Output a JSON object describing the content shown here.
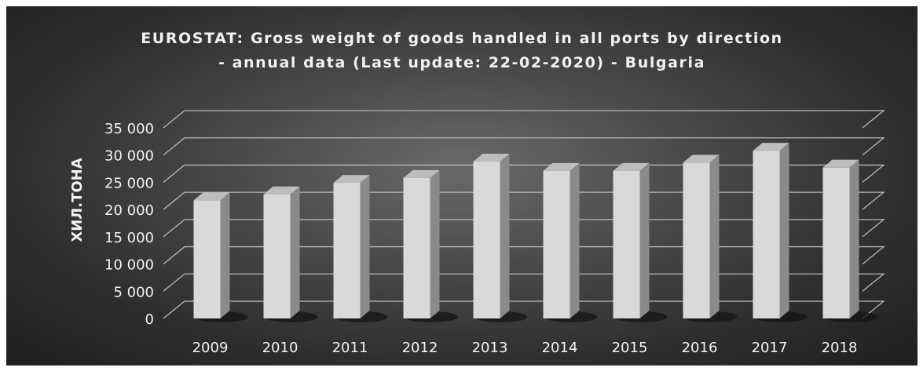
{
  "chart_data": {
    "type": "bar",
    "title_lines": [
      "EUROSTAT: Gross weight of goods handled in all ports by direction",
      "- annual data (Last update: 22-02-2020) - Bulgaria"
    ],
    "ylabel": "ХИЛ.ТОНА",
    "xlabel": "",
    "categories": [
      "2009",
      "2010",
      "2011",
      "2012",
      "2013",
      "2014",
      "2015",
      "2016",
      "2017",
      "2018"
    ],
    "series": [
      {
        "values": [
          21700,
          22800,
          24900,
          25800,
          28800,
          27100,
          27100,
          28600,
          30800,
          27700
        ]
      }
    ],
    "ylim": [
      0,
      35000
    ],
    "y_ticks": [
      {
        "value": 0,
        "label": "0"
      },
      {
        "value": 5000,
        "label": "5 000"
      },
      {
        "value": 10000,
        "label": "10 000"
      },
      {
        "value": 15000,
        "label": "15 000"
      },
      {
        "value": 20000,
        "label": "20 000"
      },
      {
        "value": 25000,
        "label": "25 000"
      },
      {
        "value": 30000,
        "label": "30 000"
      },
      {
        "value": 35000,
        "label": "35 000"
      }
    ],
    "grid": true,
    "legend": "none",
    "style": "3d-column",
    "colors": {
      "bar_front": "#d9d9d9",
      "bar_side": "#8a8a8a",
      "bar_top": "#bdbdbd",
      "gridline": "#b8b8b8",
      "text": "#f2f2f2"
    }
  }
}
